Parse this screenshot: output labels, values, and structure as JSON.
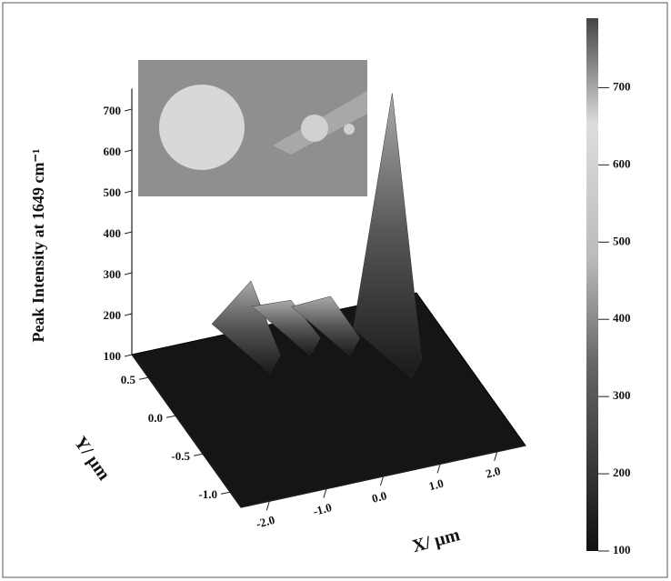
{
  "chart_data": {
    "type": "surface3d",
    "zlabel": "Peak Intensity at 1649 cm⁻¹",
    "xlabel": "X/ µm",
    "ylabel": "Y/ µm",
    "xlim": [
      -2.5,
      2.5
    ],
    "xticks": [
      {
        "value": -2,
        "label": "-2.0"
      },
      {
        "value": -1,
        "label": "-1.0"
      },
      {
        "value": 0,
        "label": "0.0"
      },
      {
        "value": 1,
        "label": "1.0"
      },
      {
        "value": 2,
        "label": "2.0"
      }
    ],
    "ylim": [
      -1.2,
      0.8
    ],
    "yticks": [
      {
        "value": -1,
        "label": "-1.0"
      },
      {
        "value": -0.5,
        "label": "-0.5"
      },
      {
        "value": 0,
        "label": "0.0"
      },
      {
        "value": 0.5,
        "label": "0.5"
      }
    ],
    "zlim": [
      100,
      750
    ],
    "zticks": [
      100,
      200,
      300,
      400,
      500,
      600,
      700
    ],
    "peaks": {
      "x": [
        -0.6,
        1.5,
        0.2,
        0.8
      ],
      "y": [
        0.6,
        0.2,
        0.7,
        0.6
      ],
      "values": [
        260,
        730,
        170,
        180
      ]
    },
    "colorbar": {
      "lim": [
        100,
        790
      ],
      "ticks": [
        100,
        200,
        300,
        400,
        500,
        600,
        700
      ]
    }
  }
}
